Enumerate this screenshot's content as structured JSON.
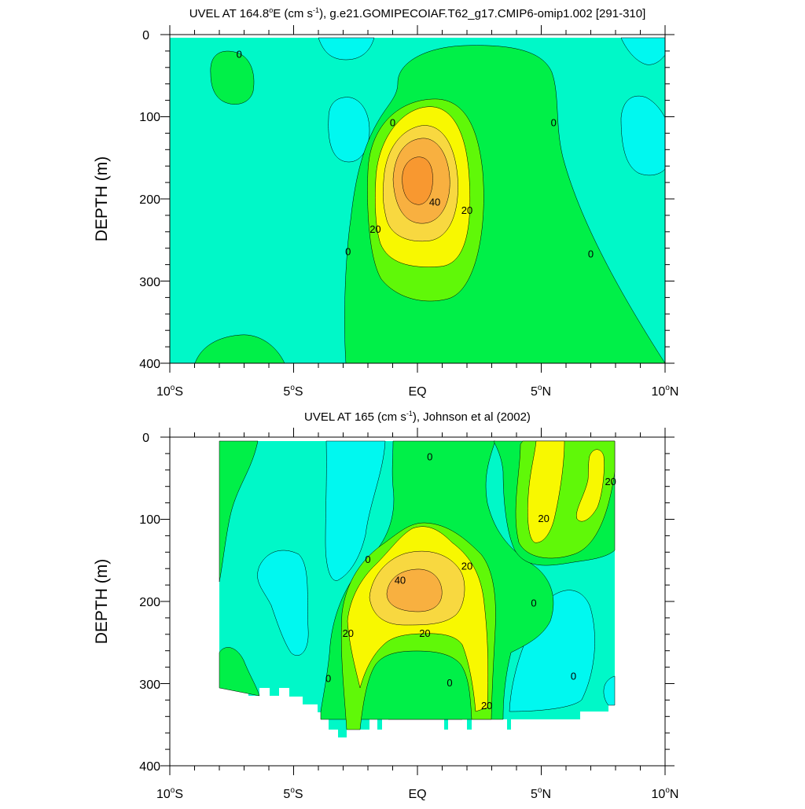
{
  "chart_data": [
    {
      "type": "contour",
      "title_prefix": "UVEL AT 164.8",
      "title_degree": "o",
      "title_main": "E (cm s",
      "title_exp": "-1",
      "title_suffix": "), g.e21.GOMIPECOIAF.T62_g17.CMIP6-omip1.002 [291-310]",
      "ylabel": "DEPTH (m)",
      "xlim": [
        -10,
        10
      ],
      "ylim": [
        400,
        0
      ],
      "y_ticks": [
        "0",
        "100",
        "200",
        "300",
        "400"
      ],
      "x_ticks": [
        {
          "base": "10",
          "sup": "o",
          "hemi": "S"
        },
        {
          "base": "5",
          "sup": "o",
          "hemi": "S"
        },
        {
          "base": "EQ",
          "sup": "",
          "hemi": ""
        },
        {
          "base": "5",
          "sup": "o",
          "hemi": "N"
        },
        {
          "base": "10",
          "sup": "o",
          "hemi": "N"
        }
      ],
      "contour_labels": [
        {
          "text": "0",
          "lat": -7.2,
          "depth": 25
        },
        {
          "text": "0",
          "lat": -1.0,
          "depth": 108
        },
        {
          "text": "0",
          "lat": 5.5,
          "depth": 108
        },
        {
          "text": "0",
          "lat": -2.8,
          "depth": 265
        },
        {
          "text": "0",
          "lat": 7.0,
          "depth": 268
        },
        {
          "text": "20",
          "lat": -1.7,
          "depth": 238
        },
        {
          "text": "20",
          "lat": 2.0,
          "depth": 215
        },
        {
          "text": "40",
          "lat": 0.7,
          "depth": 205
        }
      ]
    },
    {
      "type": "contour",
      "title_prefix": "UVEL AT 165 (cm s",
      "title_exp": "-1",
      "title_suffix": "), Johnson et al (2002)",
      "ylabel": "DEPTH (m)",
      "xlim": [
        -10,
        10
      ],
      "ylim": [
        400,
        0
      ],
      "y_ticks": [
        "0",
        "100",
        "200",
        "300",
        "400"
      ],
      "x_ticks": [
        {
          "base": "10",
          "sup": "o",
          "hemi": "S"
        },
        {
          "base": "5",
          "sup": "o",
          "hemi": "S"
        },
        {
          "base": "EQ",
          "sup": "",
          "hemi": ""
        },
        {
          "base": "5",
          "sup": "o",
          "hemi": "N"
        },
        {
          "base": "10",
          "sup": "o",
          "hemi": "N"
        }
      ],
      "contour_labels": [
        {
          "text": "0",
          "lat": 0.5,
          "depth": 25
        },
        {
          "text": "0",
          "lat": -2.0,
          "depth": 150
        },
        {
          "text": "0",
          "lat": -3.6,
          "depth": 295
        },
        {
          "text": "0",
          "lat": 1.3,
          "depth": 300
        },
        {
          "text": "0",
          "lat": 4.7,
          "depth": 203
        },
        {
          "text": "0",
          "lat": 6.3,
          "depth": 292
        },
        {
          "text": "20",
          "lat": 7.8,
          "depth": 55
        },
        {
          "text": "20",
          "lat": 5.1,
          "depth": 100
        },
        {
          "text": "20",
          "lat": 2.0,
          "depth": 158
        },
        {
          "text": "20",
          "lat": -2.8,
          "depth": 240
        },
        {
          "text": "20",
          "lat": 0.3,
          "depth": 240
        },
        {
          "text": "20",
          "lat": 2.8,
          "depth": 328
        },
        {
          "text": "40",
          "lat": -0.7,
          "depth": 175
        }
      ]
    }
  ],
  "colors": {
    "turquoise": "#00f8c8",
    "cyan": "#00f8f0",
    "green": "#00f048",
    "lime": "#60f808",
    "yellow": "#f8f800",
    "light_orange": "#f8d840",
    "orange": "#f8b040",
    "dark_orange": "#f89830"
  }
}
